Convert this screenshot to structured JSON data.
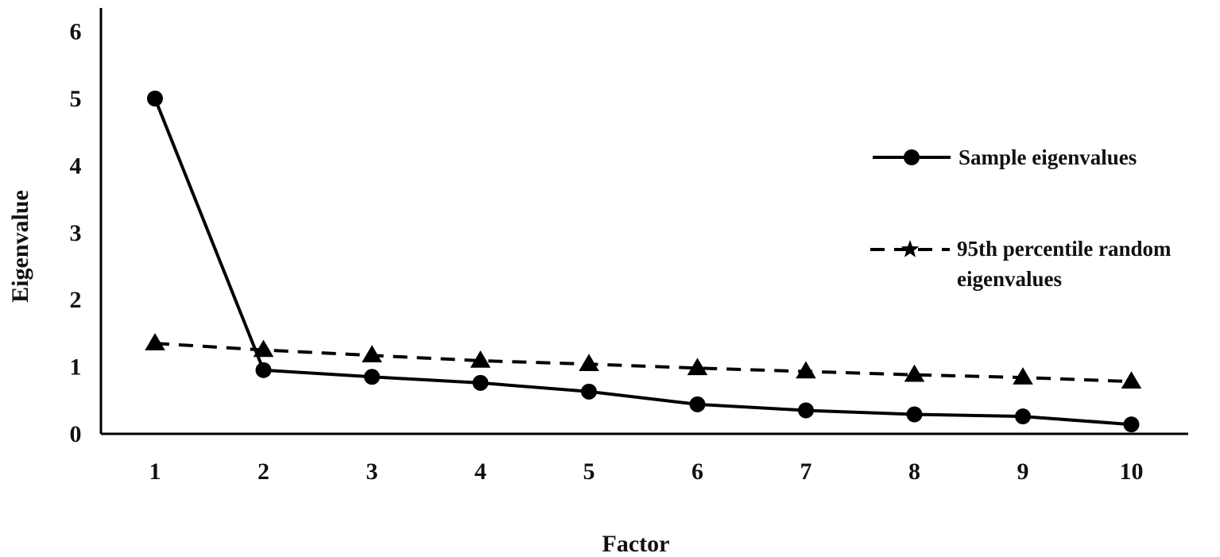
{
  "chart_data": {
    "type": "line",
    "title": "",
    "xlabel": "Factor",
    "ylabel": "Eigenvalue",
    "x": [
      1,
      2,
      3,
      4,
      5,
      6,
      7,
      8,
      9,
      10
    ],
    "x_tick_labels": [
      "1",
      "2",
      "3",
      "4",
      "5",
      "6",
      "7",
      "8",
      "9",
      "10"
    ],
    "ylim": [
      0,
      6
    ],
    "y_ticks": [
      0,
      1,
      2,
      3,
      4,
      5,
      6
    ],
    "y_tick_labels": [
      "0",
      "1",
      "2",
      "3",
      "4",
      "5",
      "6"
    ],
    "grid": false,
    "legend_position": "right",
    "series": [
      {
        "name": "Sample eigenvalues",
        "values": [
          5.0,
          0.95,
          0.85,
          0.76,
          0.63,
          0.44,
          0.35,
          0.29,
          0.26,
          0.14
        ],
        "line_style": "solid",
        "marker": "circle",
        "color": "#000000"
      },
      {
        "name": "95th percentile random eigenvalues",
        "name_lines": [
          "95th percentile random",
          "eigenvalues"
        ],
        "values": [
          1.35,
          1.25,
          1.17,
          1.09,
          1.04,
          0.98,
          0.93,
          0.88,
          0.84,
          0.78
        ],
        "line_style": "dashed",
        "marker": "triangle",
        "legend_marker": "star",
        "color": "#000000"
      }
    ]
  }
}
